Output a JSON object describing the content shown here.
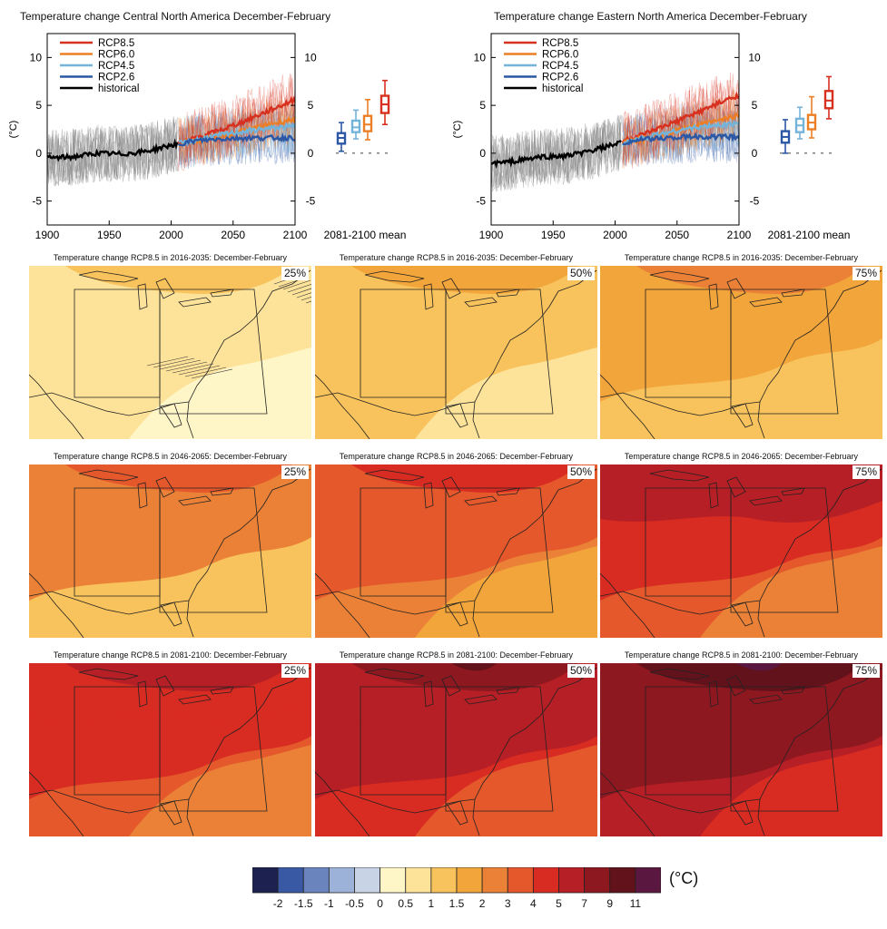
{
  "colors": {
    "RCP8.5": "#d7301f",
    "RCP6.0": "#ec7f26",
    "RCP4.5": "#74b3da",
    "RCP2.6": "#2c57a4",
    "historical": "#000000",
    "historical_spread": "#8c8c8c",
    "colorbar": [
      "#1c2150",
      "#3a59a5",
      "#6a84be",
      "#9db2d8",
      "#c8d3e6",
      "#fff6c8",
      "#fde39a",
      "#f8c25c",
      "#f2a53a",
      "#ea8137",
      "#e4582b",
      "#d82b22",
      "#b51f25",
      "#8e1820",
      "#62121a",
      "#5a1840"
    ]
  },
  "chart_data": [
    {
      "type": "line",
      "title": "Temperature change Central North America December-February",
      "ylabel": "(°C)",
      "xlim": [
        1900,
        2100
      ],
      "ylim": [
        -7.5,
        12.5
      ],
      "x_ticks": [
        1900,
        1950,
        2000,
        2050,
        2100
      ],
      "y_ticks": [
        -5,
        0,
        5,
        10
      ],
      "legend_position": "top-left",
      "series": [
        {
          "name": "RCP8.5",
          "x": [
            2006,
            2020,
            2040,
            2060,
            2080,
            2100
          ],
          "y": [
            1.1,
            1.6,
            2.4,
            3.4,
            4.5,
            5.6
          ]
        },
        {
          "name": "RCP6.0",
          "x": [
            2006,
            2020,
            2040,
            2060,
            2080,
            2100
          ],
          "y": [
            1.0,
            1.3,
            1.8,
            2.4,
            3.0,
            3.6
          ]
        },
        {
          "name": "RCP4.5",
          "x": [
            2006,
            2020,
            2040,
            2060,
            2080,
            2100
          ],
          "y": [
            1.0,
            1.4,
            1.9,
            2.3,
            2.6,
            2.8
          ]
        },
        {
          "name": "RCP2.6",
          "x": [
            2006,
            2020,
            2040,
            2060,
            2080,
            2100
          ],
          "y": [
            1.0,
            1.3,
            1.5,
            1.6,
            1.6,
            1.6
          ]
        },
        {
          "name": "historical",
          "x": [
            1900,
            1920,
            1940,
            1960,
            1980,
            2005
          ],
          "y": [
            -0.5,
            -0.4,
            0.0,
            -0.1,
            0.2,
            1.0
          ]
        }
      ],
      "boxplot_label": "2081-2100 mean",
      "boxplots": [
        {
          "name": "RCP2.6",
          "min": 0.2,
          "q1": 1.0,
          "median": 1.6,
          "q3": 2.1,
          "max": 3.2
        },
        {
          "name": "RCP4.5",
          "min": 1.5,
          "q1": 2.2,
          "median": 2.7,
          "q3": 3.4,
          "max": 4.5
        },
        {
          "name": "RCP6.0",
          "min": 1.4,
          "q1": 2.3,
          "median": 3.0,
          "q3": 3.9,
          "max": 5.6
        },
        {
          "name": "RCP8.5",
          "min": 3.0,
          "q1": 4.2,
          "median": 5.1,
          "q3": 6.0,
          "max": 7.6
        }
      ]
    },
    {
      "type": "line",
      "title": "Temperature change Eastern North America December-February",
      "ylabel": "(°C)",
      "xlim": [
        1900,
        2100
      ],
      "ylim": [
        -7.5,
        12.5
      ],
      "x_ticks": [
        1900,
        1950,
        2000,
        2050,
        2100
      ],
      "y_ticks": [
        -5,
        0,
        5,
        10
      ],
      "legend_position": "top-left",
      "series": [
        {
          "name": "RCP8.5",
          "x": [
            2006,
            2020,
            2040,
            2060,
            2080,
            2100
          ],
          "y": [
            1.3,
            1.8,
            2.8,
            3.9,
            5.0,
            6.1
          ]
        },
        {
          "name": "RCP6.0",
          "x": [
            2006,
            2020,
            2040,
            2060,
            2080,
            2100
          ],
          "y": [
            1.1,
            1.4,
            2.0,
            2.7,
            3.3,
            4.0
          ]
        },
        {
          "name": "RCP4.5",
          "x": [
            2006,
            2020,
            2040,
            2060,
            2080,
            2100
          ],
          "y": [
            1.1,
            1.5,
            2.1,
            2.6,
            2.9,
            3.1
          ]
        },
        {
          "name": "RCP2.6",
          "x": [
            2006,
            2020,
            2040,
            2060,
            2080,
            2100
          ],
          "y": [
            1.1,
            1.4,
            1.6,
            1.7,
            1.7,
            1.7
          ]
        },
        {
          "name": "historical",
          "x": [
            1900,
            1920,
            1940,
            1960,
            1980,
            2005
          ],
          "y": [
            -1.1,
            -0.8,
            -0.4,
            -0.3,
            0.2,
            1.1
          ]
        }
      ],
      "boxplot_label": "2081-2100 mean",
      "boxplots": [
        {
          "name": "RCP2.6",
          "min": 0.0,
          "q1": 1.1,
          "median": 1.7,
          "q3": 2.3,
          "max": 3.5
        },
        {
          "name": "RCP4.5",
          "min": 1.5,
          "q1": 2.2,
          "median": 2.9,
          "q3": 3.6,
          "max": 4.8
        },
        {
          "name": "RCP6.0",
          "min": 1.6,
          "q1": 2.5,
          "median": 3.2,
          "q3": 4.0,
          "max": 5.9
        },
        {
          "name": "RCP8.5",
          "min": 3.6,
          "q1": 4.7,
          "median": 5.5,
          "q3": 6.5,
          "max": 8.0
        }
      ]
    },
    {
      "type": "heatmap",
      "colorbar_labels": [
        "-2",
        "-1.5",
        "-1",
        "-0.5",
        "0",
        "0.5",
        "1",
        "1.5",
        "2",
        "3",
        "4",
        "5",
        "7",
        "9",
        "11"
      ],
      "colorbar_unit": "(°C)",
      "columns": [
        "25%",
        "50%",
        "75%"
      ],
      "panels": [
        {
          "title": "Temperature change RCP8.5 in 2016-2035: December-February",
          "percentiles": [
            "25%",
            "50%",
            "75%"
          ],
          "levels": [
            [
              0.5,
              0.8,
              1.0
            ],
            [
              1.0,
              1.3,
              1.6
            ],
            [
              1.4,
              1.8,
              2.3
            ]
          ],
          "hatched_area": "25% only"
        },
        {
          "title": "Temperature change RCP8.5 in 2046-2065: December-February",
          "percentiles": [
            "25%",
            "50%",
            "75%"
          ],
          "levels": [
            [
              1.3,
              2.0,
              3.0
            ],
            [
              2.2,
              3.2,
              4.5
            ],
            [
              3.0,
              4.5,
              6.5
            ]
          ]
        },
        {
          "title": "Temperature change RCP8.5 in 2081-2100: December-February",
          "percentiles": [
            "25%",
            "50%",
            "75%"
          ],
          "levels": [
            [
              3.0,
              4.2,
              6.0
            ],
            [
              4.0,
              5.5,
              8.0
            ],
            [
              5.0,
              7.0,
              10.0
            ]
          ]
        }
      ]
    }
  ],
  "map_titles": [
    "Temperature change RCP8.5 in 2016-2035: December-February",
    "Temperature change RCP8.5 in 2046-2065: December-February",
    "Temperature change RCP8.5 in 2081-2100: December-February"
  ],
  "percent_labels": [
    "25%",
    "50%",
    "75%"
  ]
}
